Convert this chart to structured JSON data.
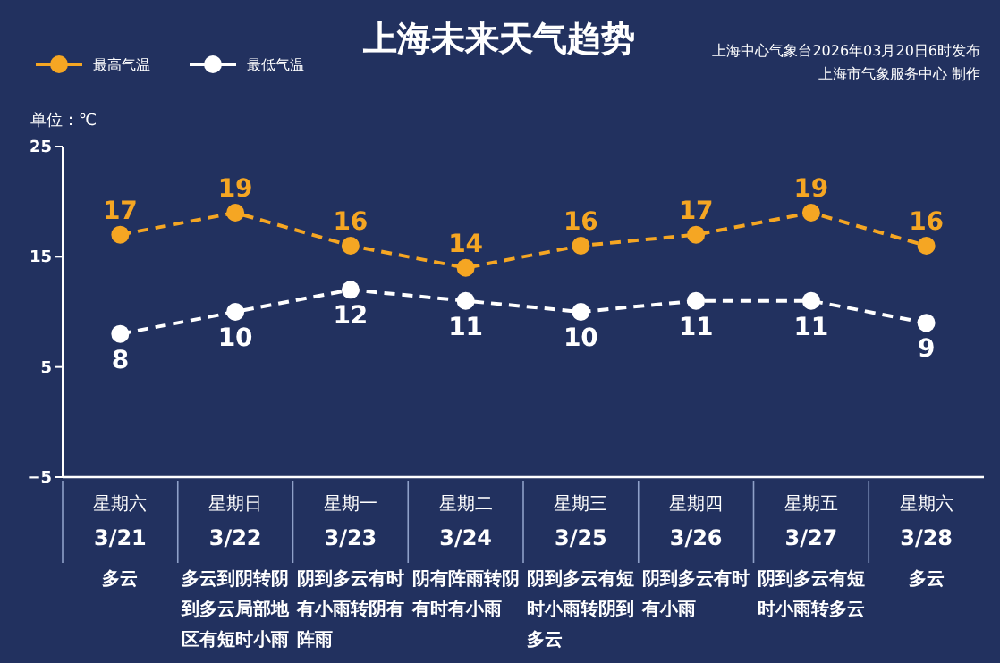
{
  "chart_data": {
    "type": "line",
    "title": "上海未来天气趋势",
    "ylabel": "单位：℃",
    "categories": [
      "星期六\n3/21",
      "星期日\n3/22",
      "星期一\n3/23",
      "星期二\n3/24",
      "星期三\n3/25",
      "星期四\n3/26",
      "星期五\n3/27",
      "星期六\n3/28"
    ],
    "series": [
      {
        "name": "最高气温",
        "color": "#f5a623",
        "values": [
          17,
          19,
          16,
          14,
          16,
          17,
          19,
          16
        ]
      },
      {
        "name": "最低气温",
        "color": "#ffffff",
        "values": [
          8,
          10,
          12,
          11,
          10,
          11,
          11,
          9
        ]
      }
    ],
    "ylim": [
      -5,
      25
    ],
    "yticks": [
      -5,
      5,
      15,
      25
    ],
    "data_labels": true,
    "legend": "top left",
    "marker": "circle",
    "line_style": "dashed",
    "grid": false,
    "annotations": [
      "上海中心气象台2026年03月20日6时发布",
      "上海市气象服务中心 制作",
      "多云",
      "多云到阴转阴到多云局部地区有短时小雨",
      "阴到多云有时有小雨转阴有阵雨",
      "阴有阵雨转阴有时有小雨",
      "阴到多云有短时小雨转阴到多云",
      "阴到多云有时有小雨",
      "阴到多云有短时小雨转多云",
      "多云"
    ]
  }
}
